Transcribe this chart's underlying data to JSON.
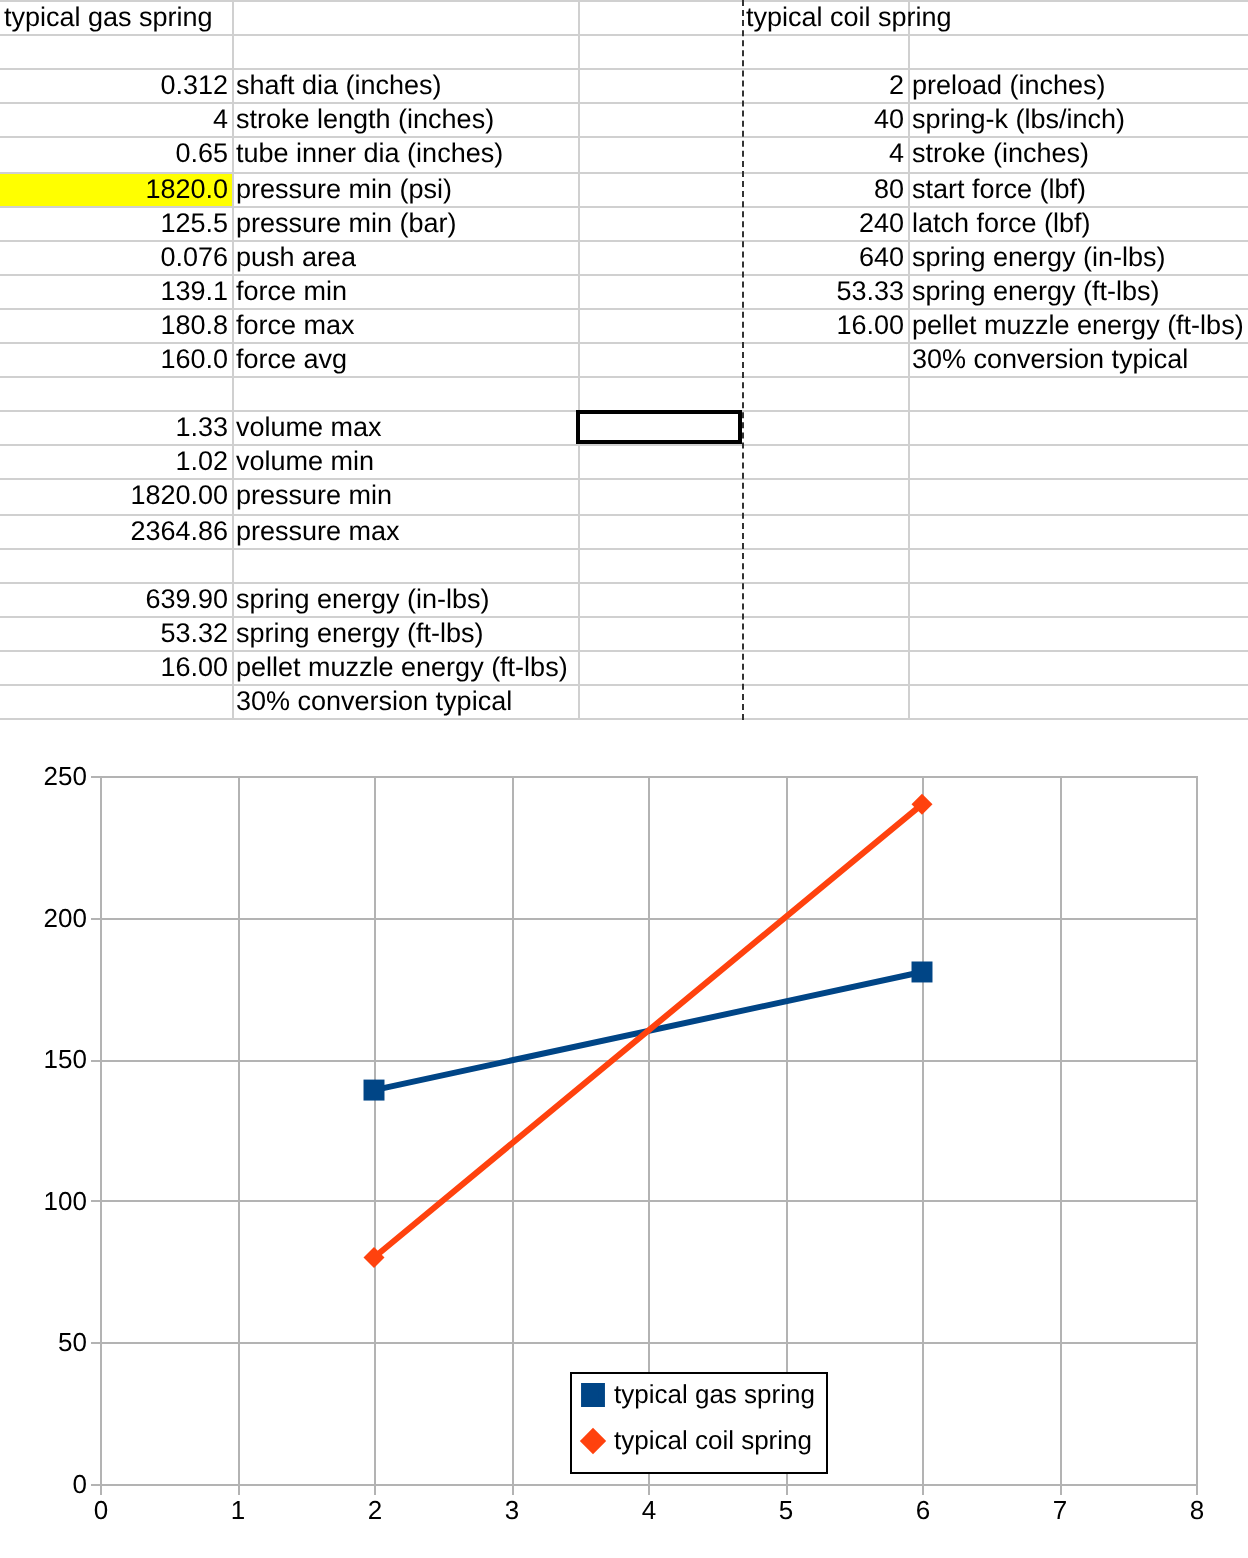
{
  "chart_data": [
    {
      "type": "other",
      "annotations": [
        "typical gas spring",
        "typical coil spring",
        "0.312",
        "shaft dia (inches)",
        "2",
        "preload (inches)",
        "4",
        "stroke length (inches)",
        "40",
        "spring-k (lbs/inch)",
        "0.65",
        "tube inner dia (inches)",
        "4",
        "stroke (inches)",
        "1820.0",
        "pressure min (psi)",
        "80",
        "start force (lbf)",
        "125.5",
        "pressure min (bar)",
        "240",
        "latch force (lbf)",
        "0.076",
        "push area",
        "640",
        "spring energy (in-lbs)",
        "139.1",
        "force min",
        "53.33",
        "spring energy (ft-lbs)",
        "180.8",
        "force max",
        "16.00",
        "pellet muzzle energy (ft-lbs)",
        "160.0",
        "force avg",
        "30% conversion typical",
        "1.33",
        "volume max",
        "1.02",
        "volume min",
        "1820.00",
        "pressure min",
        "2364.86",
        "pressure max",
        "639.90",
        "spring energy (in-lbs)",
        "53.32",
        "spring energy (ft-lbs)",
        "16.00",
        "pellet muzzle energy (ft-lbs)",
        "30% conversion typical"
      ]
    },
    {
      "type": "line",
      "x": [
        2,
        6
      ],
      "xlim": [
        0,
        8
      ],
      "xticks": [
        0,
        1,
        2,
        3,
        4,
        5,
        6,
        7,
        8
      ],
      "ylim": [
        0,
        250
      ],
      "yticks": [
        0,
        50,
        100,
        150,
        200,
        250
      ],
      "grid": true,
      "legend": "bottom",
      "series": [
        {
          "name": "typical gas spring",
          "color": "#004586",
          "marker": "square",
          "values": [
            139.1,
            180.8
          ]
        },
        {
          "name": "typical coil spring",
          "color": "#ff420e",
          "marker": "diamond",
          "values": [
            80,
            240
          ]
        }
      ]
    }
  ]
}
